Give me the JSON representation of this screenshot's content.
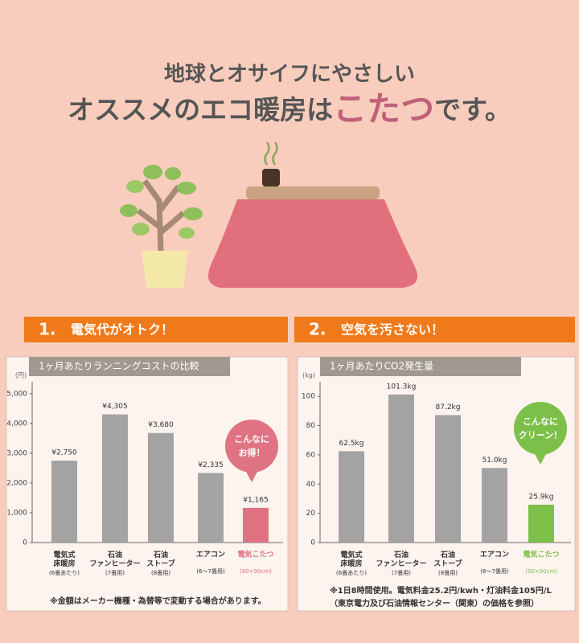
{
  "header": {
    "line1": "地球とオサイフにやさしい",
    "line2_before": "オススメのエコ暖房は",
    "line2_highlight": "こたつ",
    "line2_after": "です。"
  },
  "chart_data": [
    {
      "type": "bar",
      "section_number": "1.",
      "section_title": "電気代がオトク！",
      "title": "1ヶ月あたりランニングコストの比較",
      "unit": "(円)",
      "categories": [
        "電気式\n床暖房",
        "石油\nファンヒーター",
        "石油\nストーブ",
        "エアコン",
        "電気こたつ"
      ],
      "category_notes": [
        "(6畳あたり)",
        "(7畳用)",
        "(8畳用)",
        "(6〜7畳用)",
        "(90×90cm)"
      ],
      "values": [
        2750,
        4305,
        3680,
        2335,
        1165
      ],
      "value_labels": [
        "¥2,750",
        "¥4,305",
        "¥3,680",
        "¥2,335",
        "¥1,165"
      ],
      "colors": [
        "#a3a3a3",
        "#a3a3a3",
        "#a3a3a3",
        "#a3a3a3",
        "#e07383"
      ],
      "ylim": [
        0,
        5400
      ],
      "yticks": [
        0,
        {
          "value": 1000,
          "label": "1,000"
        },
        {
          "value": 2000,
          "label": "2,000"
        },
        {
          "value": 3000,
          "label": "3,000"
        },
        {
          "value": 4000,
          "label": "4,000"
        },
        {
          "value": 5000,
          "label": "5,000"
        }
      ],
      "annotation": "こんなに\nお得！",
      "annotation_color": "#e07383",
      "note": "※金額はメーカー機種・為替等で変動する場合があります。"
    },
    {
      "type": "bar",
      "section_number": "2.",
      "section_title": "空気を汚さない！",
      "title": "1ヶ月あたりCO2発生量",
      "unit": "(kg)",
      "categories": [
        "電気式\n床暖房",
        "石油\nファンヒーター",
        "石油\nストーブ",
        "エアコン",
        "電気こたつ"
      ],
      "category_notes": [
        "(6畳あたり)",
        "(7畳用)",
        "(8畳用)",
        "(6〜7畳用)",
        "(90×90cm)"
      ],
      "values": [
        62.5,
        101.3,
        87.2,
        51.0,
        25.9
      ],
      "value_labels": [
        "62.5kg",
        "101.3kg",
        "87.2kg",
        "51.0kg",
        "25.9kg"
      ],
      "colors": [
        "#a3a3a3",
        "#a3a3a3",
        "#a3a3a3",
        "#a3a3a3",
        "#7cc04a"
      ],
      "ylim": [
        0,
        110
      ],
      "yticks": [
        0,
        20,
        40,
        60,
        80,
        100
      ],
      "annotation": "こんなに\nクリーン！",
      "annotation_color": "#7cc04a",
      "note": "※1日8時間使用。電気料金25.2円/kwh・灯油料金105円/L\n（東京電力及び石油情報センター（関東）の価格を参照）"
    }
  ]
}
